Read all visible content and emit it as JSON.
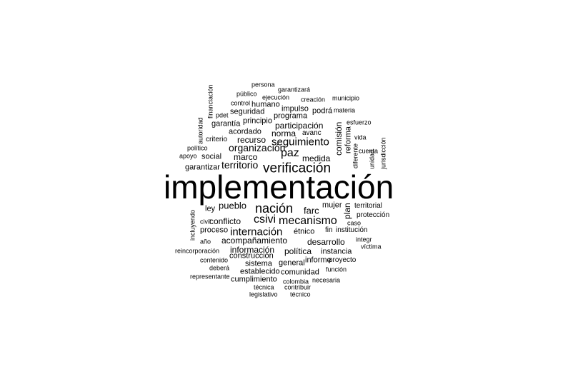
{
  "words": [
    {
      "text": "implementación",
      "size": 46
    },
    {
      "text": "verificación",
      "size": 19
    },
    {
      "text": "nación",
      "size": 18
    },
    {
      "text": "paz",
      "size": 16
    },
    {
      "text": "csivi",
      "size": 16
    },
    {
      "text": "mecanismo",
      "size": 16
    },
    {
      "text": "seguimiento",
      "size": 15
    },
    {
      "text": "internación",
      "size": 15
    },
    {
      "text": "organización",
      "size": 14
    },
    {
      "text": "territorio",
      "size": 14
    },
    {
      "text": "farc",
      "size": 13
    },
    {
      "text": "pueblo",
      "size": 13
    },
    {
      "text": "desarrollo",
      "size": 12
    },
    {
      "text": "acompañamiento",
      "size": 12
    },
    {
      "text": "medida",
      "size": 12
    },
    {
      "text": "conflicto",
      "size": 12
    },
    {
      "text": "marco",
      "size": 12
    },
    {
      "text": "participación",
      "size": 12
    },
    {
      "text": "información",
      "size": 12
    },
    {
      "text": "norma",
      "size": 12
    },
    {
      "text": "política",
      "size": 12
    },
    {
      "text": "recurso",
      "size": 12
    },
    {
      "text": "comisión",
      "size": 12
    },
    {
      "text": "reforma",
      "size": 11
    },
    {
      "text": "plan",
      "size": 12
    },
    {
      "text": "social",
      "size": 11
    },
    {
      "text": "garantizar",
      "size": 11
    },
    {
      "text": "acordado",
      "size": 11
    },
    {
      "text": "impulso",
      "size": 11
    },
    {
      "text": "seguridad",
      "size": 11
    },
    {
      "text": "programa",
      "size": 11
    },
    {
      "text": "humano",
      "size": 11
    },
    {
      "text": "garantía",
      "size": 11
    },
    {
      "text": "principio",
      "size": 11
    },
    {
      "text": "criterio",
      "size": 10
    },
    {
      "text": "étnico",
      "size": 11
    },
    {
      "text": "mujer",
      "size": 11
    },
    {
      "text": "ley",
      "size": 11
    },
    {
      "text": "proceso",
      "size": 11
    },
    {
      "text": "construcción",
      "size": 11
    },
    {
      "text": "sistema",
      "size": 11
    },
    {
      "text": "general",
      "size": 11
    },
    {
      "text": "establecido",
      "size": 11
    },
    {
      "text": "comunidad",
      "size": 11
    },
    {
      "text": "cumplimiento",
      "size": 11
    },
    {
      "text": "instancia",
      "size": 11
    },
    {
      "text": "informe",
      "size": 11
    },
    {
      "text": "proyecto",
      "size": 10
    },
    {
      "text": "podrá",
      "size": 11
    },
    {
      "text": "avanc",
      "size": 10
    },
    {
      "text": "fin",
      "size": 10
    },
    {
      "text": "institución",
      "size": 10
    },
    {
      "text": "protección",
      "size": 10
    },
    {
      "text": "territorial",
      "size": 10
    },
    {
      "text": "caso",
      "size": 9
    },
    {
      "text": "integr",
      "size": 9
    },
    {
      "text": "víctima",
      "size": 9
    },
    {
      "text": "función",
      "size": 9
    },
    {
      "text": "necesaria",
      "size": 9
    },
    {
      "text": "contribuir",
      "size": 9
    },
    {
      "text": "técnica",
      "size": 9
    },
    {
      "text": "técnico",
      "size": 9
    },
    {
      "text": "legislativo",
      "size": 9
    },
    {
      "text": "colombia",
      "size": 9
    },
    {
      "text": "representante",
      "size": 9
    },
    {
      "text": "deberá",
      "size": 9
    },
    {
      "text": "contenido",
      "size": 9
    },
    {
      "text": "reincorporación",
      "size": 9
    },
    {
      "text": "año",
      "size": 9
    },
    {
      "text": "civil",
      "size": 9
    },
    {
      "text": "incluyendo",
      "size": 9
    },
    {
      "text": "apoyo",
      "size": 9
    },
    {
      "text": "político",
      "size": 9
    },
    {
      "text": "pdet",
      "size": 9
    },
    {
      "text": "autoridad",
      "size": 9
    },
    {
      "text": "financiación",
      "size": 9
    },
    {
      "text": "persona",
      "size": 9
    },
    {
      "text": "público",
      "size": 9
    },
    {
      "text": "garantizará",
      "size": 9
    },
    {
      "text": "ejecución",
      "size": 9
    },
    {
      "text": "creación",
      "size": 9
    },
    {
      "text": "municipio",
      "size": 9
    },
    {
      "text": "control",
      "size": 9
    },
    {
      "text": "materia",
      "size": 9
    },
    {
      "text": "esfuerzo",
      "size": 9
    },
    {
      "text": "vida",
      "size": 9
    },
    {
      "text": "cuenta",
      "size": 9
    },
    {
      "text": "jurisdicción",
      "size": 9
    },
    {
      "text": "unidad",
      "size": 9
    },
    {
      "text": "diferente",
      "size": 9
    }
  ]
}
